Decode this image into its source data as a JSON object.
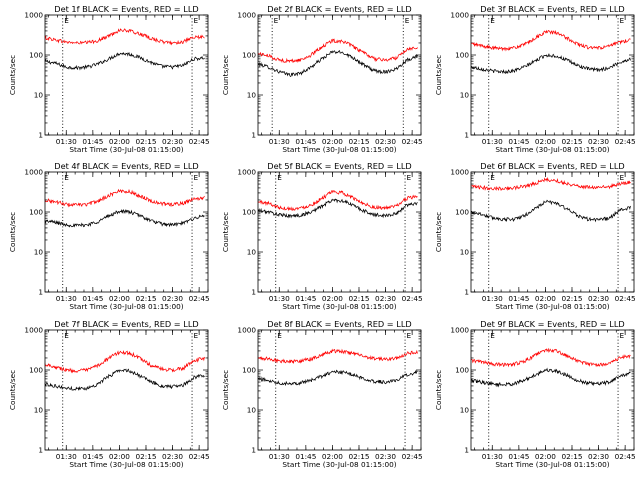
{
  "chart_data": [
    {
      "type": "line",
      "title": "Det 1f BLACK = Events, RED = LLD",
      "ylabel": "Counts/sec",
      "xlabel": "Start Time (30-Jul-08 01:15:00)",
      "yscale": "log",
      "ylim": [
        1,
        1000
      ],
      "x_range": [
        "01:18",
        "02:50"
      ],
      "x_ticks": [
        "01:30",
        "01:45",
        "02:00",
        "02:15",
        "02:30",
        "02:45"
      ],
      "y_ticks": [
        "1",
        "10",
        "100",
        "1000"
      ],
      "markers": [
        {
          "time": "01:28",
          "label": "E"
        },
        {
          "time": "02:41",
          "label": "E"
        }
      ],
      "series": [
        {
          "color": "#000000",
          "x": [
            "01:18",
            "01:24",
            "01:30",
            "01:36",
            "01:42",
            "01:48",
            "01:54",
            "02:00",
            "02:06",
            "02:12",
            "02:18",
            "02:24",
            "02:30",
            "02:36",
            "02:42",
            "02:48"
          ],
          "values": [
            70,
            62,
            50,
            48,
            50,
            60,
            80,
            110,
            105,
            85,
            65,
            52,
            50,
            55,
            80,
            85
          ]
        },
        {
          "color": "#ff0000",
          "x": [
            "01:18",
            "01:24",
            "01:30",
            "01:36",
            "01:42",
            "01:48",
            "01:54",
            "02:00",
            "02:06",
            "02:12",
            "02:18",
            "02:24",
            "02:30",
            "02:36",
            "02:42",
            "02:48"
          ],
          "values": [
            270,
            240,
            210,
            200,
            205,
            230,
            300,
            420,
            400,
            330,
            260,
            215,
            200,
            215,
            270,
            290
          ]
        }
      ]
    },
    {
      "type": "line",
      "title": "Det 2f BLACK = Events, RED = LLD",
      "ylabel": "Counts/sec",
      "xlabel": "Start Time (30-Jul-08 01:15:00)",
      "yscale": "log",
      "ylim": [
        1,
        1000
      ],
      "x_range": [
        "01:18",
        "02:50"
      ],
      "x_ticks": [
        "01:30",
        "01:45",
        "02:00",
        "02:15",
        "02:30",
        "02:45"
      ],
      "y_ticks": [
        "1",
        "10",
        "100",
        "1000"
      ],
      "markers": [
        {
          "time": "01:26",
          "label": "E"
        },
        {
          "time": "02:40",
          "label": "E"
        }
      ],
      "series": [
        {
          "color": "#000000",
          "x": [
            "01:18",
            "01:24",
            "01:30",
            "01:36",
            "01:42",
            "01:48",
            "01:54",
            "02:00",
            "02:06",
            "02:12",
            "02:18",
            "02:24",
            "02:30",
            "02:36",
            "02:42",
            "02:48"
          ],
          "values": [
            60,
            50,
            38,
            32,
            35,
            50,
            80,
            120,
            115,
            85,
            55,
            40,
            38,
            45,
            75,
            95
          ]
        },
        {
          "color": "#ff0000",
          "x": [
            "01:18",
            "01:24",
            "01:30",
            "01:36",
            "01:42",
            "01:48",
            "01:54",
            "02:00",
            "02:06",
            "02:12",
            "02:18",
            "02:24",
            "02:30",
            "02:36",
            "02:42",
            "02:48"
          ],
          "values": [
            110,
            95,
            75,
            70,
            75,
            100,
            160,
            230,
            220,
            160,
            110,
            80,
            75,
            85,
            140,
            160
          ]
        }
      ]
    },
    {
      "type": "line",
      "title": "Det 3f BLACK = Events, RED = LLD",
      "ylabel": "Counts/sec",
      "xlabel": "Start Time (30-Jul-08 01:15:00)",
      "yscale": "log",
      "ylim": [
        1,
        1000
      ],
      "x_range": [
        "01:18",
        "02:50"
      ],
      "x_ticks": [
        "01:30",
        "01:45",
        "02:00",
        "02:15",
        "02:30",
        "02:45"
      ],
      "y_ticks": [
        "1",
        "10",
        "100",
        "1000"
      ],
      "markers": [
        {
          "time": "01:28",
          "label": "E"
        },
        {
          "time": "02:41",
          "label": "E"
        }
      ],
      "series": [
        {
          "color": "#000000",
          "x": [
            "01:18",
            "01:24",
            "01:30",
            "01:36",
            "01:42",
            "01:48",
            "01:54",
            "02:00",
            "02:06",
            "02:12",
            "02:18",
            "02:24",
            "02:30",
            "02:36",
            "02:42",
            "02:48"
          ],
          "values": [
            50,
            45,
            40,
            38,
            40,
            50,
            70,
            100,
            95,
            75,
            55,
            45,
            42,
            48,
            65,
            80
          ]
        },
        {
          "color": "#ff0000",
          "x": [
            "01:18",
            "01:24",
            "01:30",
            "01:36",
            "01:42",
            "01:48",
            "01:54",
            "02:00",
            "02:06",
            "02:12",
            "02:18",
            "02:24",
            "02:30",
            "02:36",
            "02:42",
            "02:48"
          ],
          "values": [
            190,
            170,
            150,
            145,
            150,
            180,
            260,
            380,
            360,
            270,
            190,
            155,
            150,
            165,
            210,
            240
          ]
        }
      ]
    },
    {
      "type": "line",
      "title": "Det 4f BLACK = Events, RED = LLD",
      "ylabel": "Counts/sec",
      "xlabel": "Start Time (30-Jul-08 01:15:00)",
      "yscale": "log",
      "ylim": [
        1,
        1000
      ],
      "x_range": [
        "01:18",
        "02:50"
      ],
      "x_ticks": [
        "01:30",
        "01:45",
        "02:00",
        "02:15",
        "02:30",
        "02:45"
      ],
      "y_ticks": [
        "1",
        "10",
        "100",
        "1000"
      ],
      "markers": [
        {
          "time": "01:28",
          "label": "E"
        },
        {
          "time": "02:41",
          "label": "E"
        }
      ],
      "series": [
        {
          "color": "#000000",
          "x": [
            "01:18",
            "01:24",
            "01:30",
            "01:36",
            "01:42",
            "01:48",
            "01:54",
            "02:00",
            "02:06",
            "02:12",
            "02:18",
            "02:24",
            "02:30",
            "02:36",
            "02:42",
            "02:48"
          ],
          "values": [
            60,
            55,
            48,
            46,
            48,
            58,
            80,
            105,
            100,
            80,
            60,
            50,
            48,
            52,
            70,
            80
          ]
        },
        {
          "color": "#ff0000",
          "x": [
            "01:18",
            "01:24",
            "01:30",
            "01:36",
            "01:42",
            "01:48",
            "01:54",
            "02:00",
            "02:06",
            "02:12",
            "02:18",
            "02:24",
            "02:30",
            "02:36",
            "02:42",
            "02:48"
          ],
          "values": [
            200,
            180,
            155,
            150,
            155,
            190,
            260,
            340,
            320,
            250,
            190,
            160,
            155,
            165,
            210,
            230
          ]
        }
      ]
    },
    {
      "type": "line",
      "title": "Det 5f BLACK = Events, RED = LLD",
      "ylabel": "Counts/sec",
      "xlabel": "Start Time (30-Jul-08 01:15:00)",
      "yscale": "log",
      "ylim": [
        1,
        1000
      ],
      "x_range": [
        "01:18",
        "02:50"
      ],
      "x_ticks": [
        "01:30",
        "01:45",
        "02:00",
        "02:15",
        "02:30",
        "02:45"
      ],
      "y_ticks": [
        "1",
        "10",
        "100",
        "1000"
      ],
      "markers": [
        {
          "time": "01:28",
          "label": "E"
        },
        {
          "time": "02:41",
          "label": "E"
        }
      ],
      "series": [
        {
          "color": "#000000",
          "x": [
            "01:18",
            "01:24",
            "01:30",
            "01:36",
            "01:42",
            "01:48",
            "01:54",
            "02:00",
            "02:06",
            "02:12",
            "02:18",
            "02:24",
            "02:30",
            "02:36",
            "02:42",
            "02:48"
          ],
          "values": [
            110,
            100,
            85,
            80,
            82,
            100,
            140,
            200,
            190,
            145,
            105,
            85,
            82,
            90,
            150,
            170
          ]
        },
        {
          "color": "#ff0000",
          "x": [
            "01:18",
            "01:24",
            "01:30",
            "01:36",
            "01:42",
            "01:48",
            "01:54",
            "02:00",
            "02:06",
            "02:12",
            "02:18",
            "02:24",
            "02:30",
            "02:36",
            "02:42",
            "02:48"
          ],
          "values": [
            180,
            165,
            130,
            120,
            125,
            150,
            220,
            320,
            300,
            220,
            160,
            130,
            125,
            140,
            220,
            250
          ]
        }
      ]
    },
    {
      "type": "line",
      "title": "Det 6f BLACK = Events, RED = LLD",
      "ylabel": "Counts/sec",
      "xlabel": "Start Time (30-Jul-08 01:15:00)",
      "yscale": "log",
      "ylim": [
        1,
        1000
      ],
      "x_range": [
        "01:18",
        "02:50"
      ],
      "x_ticks": [
        "01:30",
        "01:45",
        "02:00",
        "02:15",
        "02:30",
        "02:45"
      ],
      "y_ticks": [
        "1",
        "10",
        "100",
        "1000"
      ],
      "markers": [
        {
          "time": "01:28",
          "label": "E"
        },
        {
          "time": "02:41",
          "label": "E"
        }
      ],
      "series": [
        {
          "color": "#000000",
          "x": [
            "01:18",
            "01:24",
            "01:30",
            "01:36",
            "01:42",
            "01:48",
            "01:54",
            "02:00",
            "02:06",
            "02:12",
            "02:18",
            "02:24",
            "02:30",
            "02:36",
            "02:42",
            "02:48"
          ],
          "values": [
            100,
            88,
            72,
            66,
            66,
            80,
            120,
            180,
            170,
            120,
            82,
            66,
            64,
            70,
            110,
            130
          ]
        },
        {
          "color": "#ff0000",
          "x": [
            "01:18",
            "01:24",
            "01:30",
            "01:36",
            "01:42",
            "01:48",
            "01:54",
            "02:00",
            "02:06",
            "02:12",
            "02:18",
            "02:24",
            "02:30",
            "02:36",
            "02:42",
            "02:48"
          ],
          "values": [
            430,
            410,
            390,
            390,
            400,
            440,
            520,
            640,
            610,
            520,
            450,
            420,
            410,
            430,
            500,
            560
          ]
        }
      ]
    },
    {
      "type": "line",
      "title": "Det 7f BLACK = Events, RED = LLD",
      "ylabel": "Counts/sec",
      "xlabel": "Start Time (30-Jul-08 01:15:00)",
      "yscale": "log",
      "ylim": [
        1,
        1000
      ],
      "x_range": [
        "01:18",
        "02:50"
      ],
      "x_ticks": [
        "01:30",
        "01:45",
        "02:00",
        "02:15",
        "02:30",
        "02:45"
      ],
      "y_ticks": [
        "1",
        "10",
        "100",
        "1000"
      ],
      "markers": [
        {
          "time": "01:28",
          "label": "E"
        },
        {
          "time": "02:41",
          "label": "E"
        }
      ],
      "series": [
        {
          "color": "#000000",
          "x": [
            "01:18",
            "01:24",
            "01:30",
            "01:36",
            "01:42",
            "01:48",
            "01:54",
            "02:00",
            "02:06",
            "02:12",
            "02:18",
            "02:24",
            "02:30",
            "02:36",
            "02:42",
            "02:48"
          ],
          "values": [
            45,
            40,
            35,
            34,
            35,
            45,
            70,
            100,
            95,
            70,
            50,
            40,
            38,
            42,
            65,
            75
          ]
        },
        {
          "color": "#ff0000",
          "x": [
            "01:18",
            "01:24",
            "01:30",
            "01:36",
            "01:42",
            "01:48",
            "01:54",
            "02:00",
            "02:06",
            "02:12",
            "02:18",
            "02:24",
            "02:30",
            "02:36",
            "02:42",
            "02:48"
          ],
          "values": [
            140,
            120,
            100,
            95,
            100,
            130,
            200,
            280,
            265,
            190,
            130,
            105,
            100,
            110,
            170,
            200
          ]
        }
      ]
    },
    {
      "type": "line",
      "title": "Det 8f BLACK = Events, RED = LLD",
      "ylabel": "Counts/sec",
      "xlabel": "Start Time (30-Jul-08 01:15:00)",
      "yscale": "log",
      "ylim": [
        1,
        1000
      ],
      "x_range": [
        "01:18",
        "02:50"
      ],
      "x_ticks": [
        "01:30",
        "01:45",
        "02:00",
        "02:15",
        "02:30",
        "02:45"
      ],
      "y_ticks": [
        "1",
        "10",
        "100",
        "1000"
      ],
      "markers": [
        {
          "time": "01:28",
          "label": "E"
        },
        {
          "time": "02:41",
          "label": "E"
        }
      ],
      "series": [
        {
          "color": "#000000",
          "x": [
            "01:18",
            "01:24",
            "01:30",
            "01:36",
            "01:42",
            "01:48",
            "01:54",
            "02:00",
            "02:06",
            "02:12",
            "02:18",
            "02:24",
            "02:30",
            "02:36",
            "02:42",
            "02:48"
          ],
          "values": [
            60,
            55,
            48,
            46,
            48,
            55,
            70,
            90,
            88,
            75,
            60,
            52,
            50,
            55,
            75,
            90
          ]
        },
        {
          "color": "#ff0000",
          "x": [
            "01:18",
            "01:24",
            "01:30",
            "01:36",
            "01:42",
            "01:48",
            "01:54",
            "02:00",
            "02:06",
            "02:12",
            "02:18",
            "02:24",
            "02:30",
            "02:36",
            "02:42",
            "02:48"
          ],
          "values": [
            200,
            190,
            170,
            165,
            170,
            190,
            240,
            300,
            290,
            260,
            220,
            190,
            185,
            200,
            260,
            280
          ]
        }
      ]
    },
    {
      "type": "line",
      "title": "Det 9f BLACK = Events, RED = LLD",
      "ylabel": "Counts/sec",
      "xlabel": "Start Time (30-Jul-08 01:15:00)",
      "yscale": "log",
      "ylim": [
        1,
        1000
      ],
      "x_range": [
        "01:18",
        "02:50"
      ],
      "x_ticks": [
        "01:30",
        "01:45",
        "02:00",
        "02:15",
        "02:30",
        "02:45"
      ],
      "y_ticks": [
        "1",
        "10",
        "100",
        "1000"
      ],
      "markers": [
        {
          "time": "01:28",
          "label": "E"
        },
        {
          "time": "02:41",
          "label": "E"
        }
      ],
      "series": [
        {
          "color": "#000000",
          "x": [
            "01:18",
            "01:24",
            "01:30",
            "01:36",
            "01:42",
            "01:48",
            "01:54",
            "02:00",
            "02:06",
            "02:12",
            "02:18",
            "02:24",
            "02:30",
            "02:36",
            "02:42",
            "02:48"
          ],
          "values": [
            55,
            50,
            45,
            43,
            45,
            55,
            75,
            100,
            95,
            75,
            55,
            47,
            45,
            50,
            70,
            85
          ]
        },
        {
          "color": "#ff0000",
          "x": [
            "01:18",
            "01:24",
            "01:30",
            "01:36",
            "01:42",
            "01:48",
            "01:54",
            "02:00",
            "02:06",
            "02:12",
            "02:18",
            "02:24",
            "02:30",
            "02:36",
            "02:42",
            "02:48"
          ],
          "values": [
            175,
            160,
            140,
            135,
            140,
            165,
            230,
            320,
            300,
            230,
            170,
            140,
            135,
            150,
            200,
            230
          ]
        }
      ]
    }
  ]
}
